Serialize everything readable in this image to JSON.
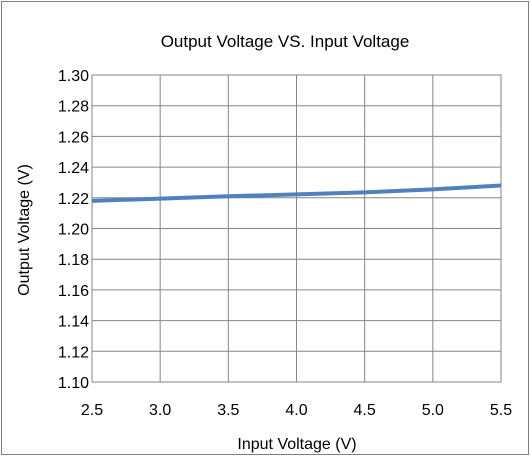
{
  "chart_data": {
    "type": "line",
    "title": "Output Voltage VS. Input Voltage",
    "xlabel": "Input Voltage (V)",
    "ylabel": "Output Voltage (V)",
    "xlim": [
      2.5,
      5.5
    ],
    "ylim": [
      1.1,
      1.3
    ],
    "xticks": [
      "2.5",
      "3.0",
      "3.5",
      "4.0",
      "4.5",
      "5.0",
      "5.5"
    ],
    "yticks": [
      "1.10",
      "1.12",
      "1.14",
      "1.16",
      "1.18",
      "1.20",
      "1.22",
      "1.24",
      "1.26",
      "1.28",
      "1.30"
    ],
    "grid": true,
    "legend": "none",
    "series": [
      {
        "color": "#4f81bd",
        "x": [
          2.5,
          3.0,
          3.5,
          4.0,
          4.5,
          5.0,
          5.5
        ],
        "y": [
          1.218,
          1.2195,
          1.221,
          1.2222,
          1.2235,
          1.2255,
          1.228
        ]
      }
    ]
  }
}
